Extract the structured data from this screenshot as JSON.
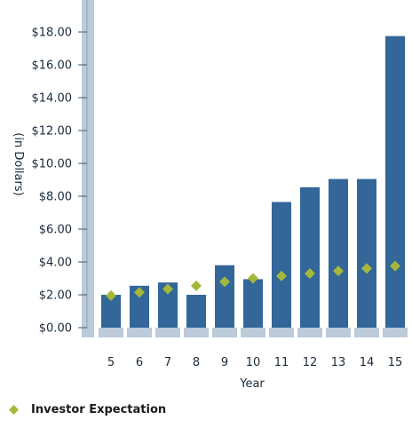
{
  "chart_data": {
    "type": "bar",
    "categories": [
      "5",
      "6",
      "7",
      "8",
      "9",
      "10",
      "11",
      "12",
      "13",
      "14",
      "15"
    ],
    "series": [
      {
        "values": [
          2.0,
          2.55,
          2.75,
          2.0,
          3.8,
          2.95,
          7.65,
          8.55,
          9.05,
          9.05,
          17.75
        ]
      },
      {
        "name": "Investor Expectation",
        "type": "scatter",
        "values": [
          1.95,
          2.15,
          2.35,
          2.55,
          2.8,
          3.0,
          3.15,
          3.3,
          3.45,
          3.6,
          3.75
        ]
      }
    ],
    "yticks": [
      0,
      2,
      4,
      6,
      8,
      10,
      12,
      14,
      16,
      18
    ],
    "ytick_labels": [
      "$0.00",
      "$2.00",
      "$4.00",
      "$6.00",
      "$8.00",
      "$10.00",
      "$12.00",
      "$14.00",
      "$16.00",
      "$18.00"
    ],
    "xlabel": "Year",
    "ylabel": "(in Dollars)",
    "ylim": [
      0,
      19
    ],
    "legend_position": "bottom-left",
    "colors": {
      "bar": "#336699",
      "marker": "#a3b83a",
      "axis_band": "#bccbd9"
    }
  }
}
